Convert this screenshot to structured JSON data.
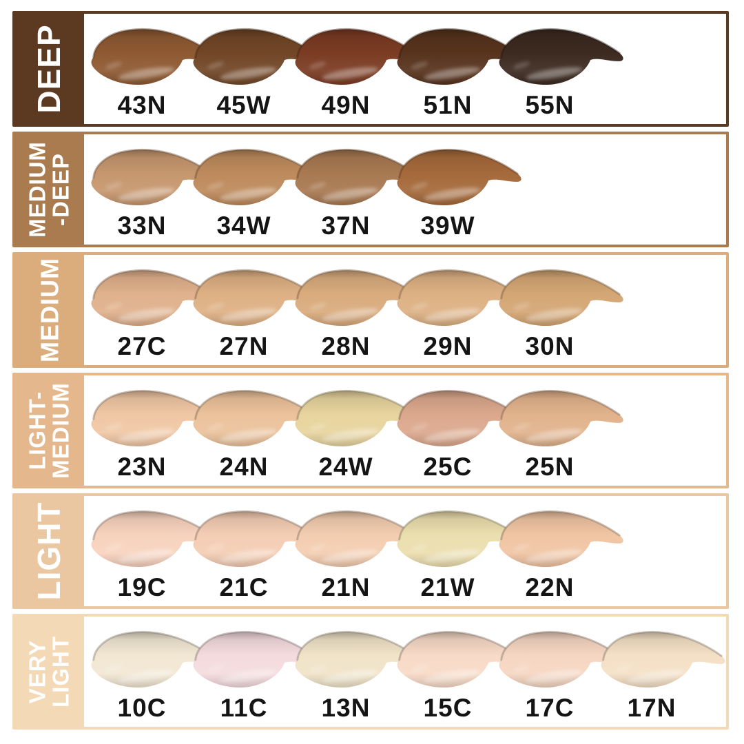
{
  "chart": {
    "title": "foundation-shade-range-chart",
    "rows": [
      {
        "range": "DEEP",
        "label_lines": "DEEP",
        "band_color": "#5C3A22",
        "shades": [
          {
            "code": "43N",
            "color": "#8E5932"
          },
          {
            "code": "45W",
            "color": "#714627"
          },
          {
            "code": "49N",
            "color": "#7B3B23"
          },
          {
            "code": "51N",
            "color": "#57331D"
          },
          {
            "code": "55N",
            "color": "#3C2A20"
          }
        ]
      },
      {
        "range": "MEDIUM-DEEP",
        "label_lines": "MEDIUM\n-DEEP",
        "band_color": "#A97B4F",
        "shades": [
          {
            "code": "33N",
            "color": "#C6976E"
          },
          {
            "code": "34W",
            "color": "#BD8A5C"
          },
          {
            "code": "37N",
            "color": "#A87951"
          },
          {
            "code": "39W",
            "color": "#A5693A"
          }
        ]
      },
      {
        "range": "MEDIUM",
        "label_lines": "MEDIUM",
        "band_color": "#DBAD7D",
        "shades": [
          {
            "code": "27C",
            "color": "#E0B18C"
          },
          {
            "code": "27N",
            "color": "#DEB084"
          },
          {
            "code": "28N",
            "color": "#D9AB7D"
          },
          {
            "code": "29N",
            "color": "#DDB183"
          },
          {
            "code": "30N",
            "color": "#D4A674"
          }
        ]
      },
      {
        "range": "LIGHT-MEDIUM",
        "label_lines": "LIGHT-\nMEDIUM",
        "band_color": "#E4B78D",
        "shades": [
          {
            "code": "23N",
            "color": "#F0C7A5"
          },
          {
            "code": "24N",
            "color": "#EBC29B"
          },
          {
            "code": "24W",
            "color": "#E7D49E"
          },
          {
            "code": "25C",
            "color": "#DBA88D"
          },
          {
            "code": "25N",
            "color": "#E1B38C"
          }
        ]
      },
      {
        "range": "LIGHT",
        "label_lines": "LIGHT",
        "band_color": "#EAC7A0",
        "shades": [
          {
            "code": "19C",
            "color": "#F7D3BE"
          },
          {
            "code": "21C",
            "color": "#F4CDB4"
          },
          {
            "code": "21N",
            "color": "#F3CDB0"
          },
          {
            "code": "21W",
            "color": "#EBDEAE"
          },
          {
            "code": "22N",
            "color": "#F0C5A4"
          }
        ]
      },
      {
        "range": "VERY LIGHT",
        "label_lines": "VERY\nLIGHT",
        "band_color": "#F4D9B6",
        "shades": [
          {
            "code": "10C",
            "color": "#F2E7D3"
          },
          {
            "code": "11C",
            "color": "#F4DBDE"
          },
          {
            "code": "13N",
            "color": "#F0E3C8"
          },
          {
            "code": "15C",
            "color": "#F7DAC7"
          },
          {
            "code": "17C",
            "color": "#F5D6C2"
          },
          {
            "code": "17N",
            "color": "#F4E0C6"
          }
        ]
      }
    ]
  }
}
